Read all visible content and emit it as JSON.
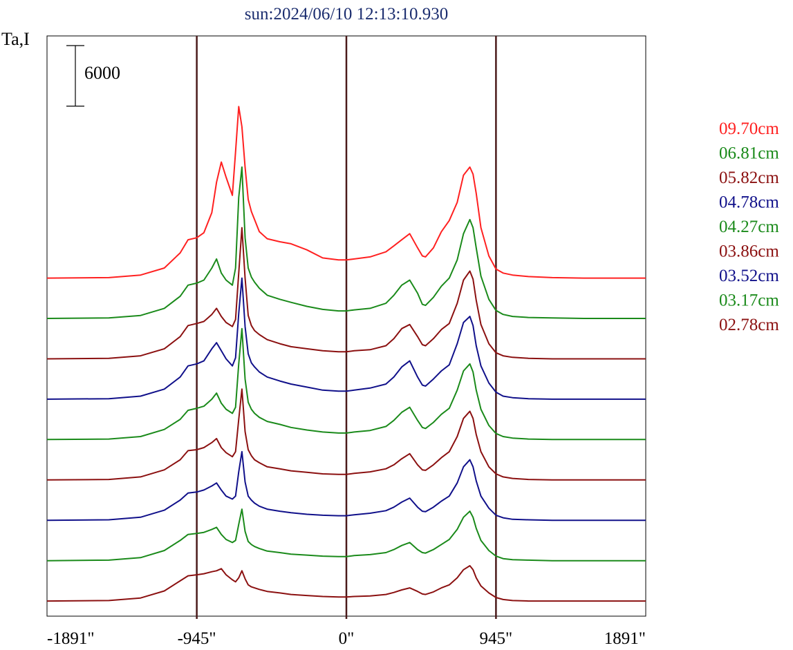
{
  "chart_data": {
    "type": "line",
    "title": "sun:2024/06/10 12:13:10.930",
    "ylabel": "Ta,I",
    "xlabel": "",
    "x_ticks": [
      {
        "value": -1891,
        "label": "-1891\""
      },
      {
        "value": -945,
        "label": "-945\""
      },
      {
        "value": 0,
        "label": "0\""
      },
      {
        "value": 945,
        "label": "945\""
      },
      {
        "value": 1891,
        "label": "1891\""
      }
    ],
    "xlim": [
      -1891,
      1891
    ],
    "vertical_lines": [
      -945,
      0,
      945
    ],
    "scale_bar": {
      "value": 6000,
      "label": "6000"
    },
    "ylim": [
      -1500,
      56000
    ],
    "offsets": [
      0,
      4000,
      8000,
      12000,
      16000,
      20000,
      24000,
      28000,
      32000
    ],
    "x": [
      -1891,
      -1500,
      -1300,
      -1150,
      -1050,
      -1000,
      -945,
      -900,
      -850,
      -820,
      -790,
      -760,
      -720,
      -700,
      -680,
      -660,
      -640,
      -620,
      -600,
      -580,
      -550,
      -500,
      -420,
      -350,
      -250,
      -150,
      -50,
      0,
      50,
      150,
      250,
      300,
      350,
      400,
      450,
      480,
      500,
      550,
      600,
      650,
      700,
      740,
      780,
      800,
      820,
      850,
      900,
      945,
      990,
      1050,
      1150,
      1300,
      1500,
      1891
    ],
    "series": [
      {
        "name": "09.70cm",
        "color": "#ff2020",
        "values": [
          0,
          50,
          300,
          1000,
          2500,
          3800,
          4000,
          4500,
          6500,
          9500,
          11500,
          10000,
          8200,
          12500,
          17000,
          15000,
          11000,
          7800,
          6600,
          5800,
          4600,
          3900,
          3600,
          3400,
          2800,
          2000,
          1800,
          1800,
          1900,
          2100,
          2600,
          3200,
          3800,
          4400,
          3000,
          2200,
          2100,
          3000,
          4600,
          5700,
          7500,
          10200,
          11000,
          10300,
          8400,
          5000,
          2200,
          900,
          500,
          300,
          150,
          50,
          0,
          0
        ]
      },
      {
        "name": "06.81cm",
        "color": "#1a8a1a",
        "values": [
          0,
          50,
          300,
          1000,
          2200,
          3300,
          3500,
          3800,
          5000,
          5900,
          4500,
          3800,
          3300,
          5000,
          12000,
          15000,
          8000,
          5000,
          4100,
          3600,
          3000,
          2300,
          1900,
          1600,
          1200,
          900,
          750,
          750,
          850,
          1000,
          1500,
          2300,
          3300,
          3800,
          2500,
          1400,
          1300,
          2100,
          3200,
          4000,
          5800,
          8400,
          9800,
          9000,
          7000,
          4200,
          1900,
          800,
          400,
          200,
          100,
          50,
          0,
          0
        ]
      },
      {
        "name": "05.82cm",
        "color": "#8b1010",
        "values": [
          0,
          50,
          300,
          1000,
          2200,
          3300,
          3500,
          3700,
          4400,
          5000,
          4200,
          3600,
          3200,
          3900,
          8500,
          13000,
          8000,
          4300,
          3300,
          2800,
          2400,
          1900,
          1500,
          1200,
          1000,
          800,
          700,
          700,
          800,
          900,
          1300,
          2000,
          3000,
          3400,
          2200,
          1400,
          1300,
          2000,
          2900,
          3500,
          5500,
          7800,
          8700,
          7900,
          5800,
          3400,
          1500,
          600,
          300,
          150,
          50,
          0,
          0,
          0
        ]
      },
      {
        "name": "04.78cm",
        "color": "#10108a",
        "values": [
          0,
          50,
          300,
          1000,
          2200,
          3300,
          3500,
          3800,
          5000,
          5600,
          4800,
          4000,
          3300,
          4100,
          8500,
          12000,
          7200,
          4500,
          3600,
          3200,
          2700,
          2200,
          1800,
          1500,
          1200,
          900,
          800,
          800,
          900,
          1100,
          1500,
          2200,
          3200,
          3800,
          2200,
          1400,
          1300,
          2000,
          2800,
          3400,
          5500,
          7600,
          8200,
          7300,
          5300,
          3300,
          1600,
          700,
          300,
          150,
          50,
          0,
          0,
          0
        ]
      },
      {
        "name": "04.27cm",
        "color": "#1a8a1a",
        "values": [
          0,
          50,
          300,
          1000,
          2000,
          2900,
          3100,
          3300,
          4000,
          4600,
          3600,
          3000,
          2600,
          3200,
          7500,
          11000,
          6000,
          3700,
          3000,
          2600,
          2200,
          1800,
          1500,
          1200,
          950,
          750,
          650,
          650,
          750,
          900,
          1300,
          1900,
          2700,
          3200,
          1900,
          1200,
          1100,
          1700,
          2500,
          3100,
          4900,
          6800,
          7500,
          6700,
          4900,
          3000,
          1400,
          600,
          300,
          150,
          50,
          0,
          0,
          0
        ]
      },
      {
        "name": "03.86cm",
        "color": "#8b1010",
        "values": [
          0,
          50,
          300,
          1000,
          2000,
          2900,
          3000,
          3200,
          3700,
          4100,
          3200,
          2700,
          2300,
          2800,
          6000,
          9000,
          4800,
          3000,
          2400,
          2000,
          1700,
          1300,
          1100,
          900,
          750,
          600,
          550,
          550,
          650,
          800,
          1100,
          1500,
          2100,
          2600,
          1500,
          1000,
          950,
          1500,
          2200,
          2800,
          4300,
          6100,
          6800,
          6100,
          4500,
          2800,
          1300,
          600,
          300,
          150,
          50,
          0,
          0,
          0
        ]
      },
      {
        "name": "03.52cm",
        "color": "#10108a",
        "values": [
          0,
          50,
          300,
          1000,
          2000,
          2700,
          2800,
          3000,
          3400,
          3700,
          3000,
          2400,
          2100,
          2400,
          4800,
          6800,
          3800,
          2400,
          2000,
          1700,
          1400,
          1100,
          900,
          750,
          600,
          500,
          450,
          450,
          550,
          700,
          950,
          1300,
          1800,
          2200,
          1300,
          900,
          850,
          1300,
          1900,
          2400,
          3700,
          5300,
          6000,
          5300,
          3900,
          2400,
          1200,
          500,
          250,
          100,
          50,
          0,
          0,
          0
        ]
      },
      {
        "name": "03.17cm",
        "color": "#1a8a1a",
        "values": [
          0,
          50,
          300,
          1000,
          2000,
          2600,
          2700,
          2800,
          3100,
          3300,
          2600,
          2100,
          1800,
          2000,
          3600,
          5100,
          2900,
          1900,
          1600,
          1400,
          1200,
          950,
          800,
          650,
          550,
          450,
          400,
          400,
          500,
          600,
          800,
          1100,
          1500,
          1800,
          1100,
          800,
          750,
          1100,
          1600,
          2100,
          3100,
          4300,
          4900,
          4300,
          3200,
          2000,
          1000,
          450,
          200,
          100,
          50,
          0,
          0,
          0
        ]
      },
      {
        "name": "02.78cm",
        "color": "#8b1010",
        "values": [
          0,
          50,
          300,
          1000,
          2000,
          2500,
          2600,
          2700,
          2900,
          3000,
          3200,
          2600,
          2100,
          1900,
          2300,
          3000,
          2200,
          1600,
          1400,
          1300,
          1150,
          950,
          800,
          650,
          550,
          450,
          400,
          400,
          450,
          500,
          650,
          850,
          1100,
          1300,
          950,
          700,
          650,
          900,
          1300,
          1600,
          2300,
          3100,
          3500,
          3100,
          2300,
          1500,
          800,
          350,
          150,
          50,
          0,
          0,
          0,
          0
        ]
      }
    ]
  }
}
